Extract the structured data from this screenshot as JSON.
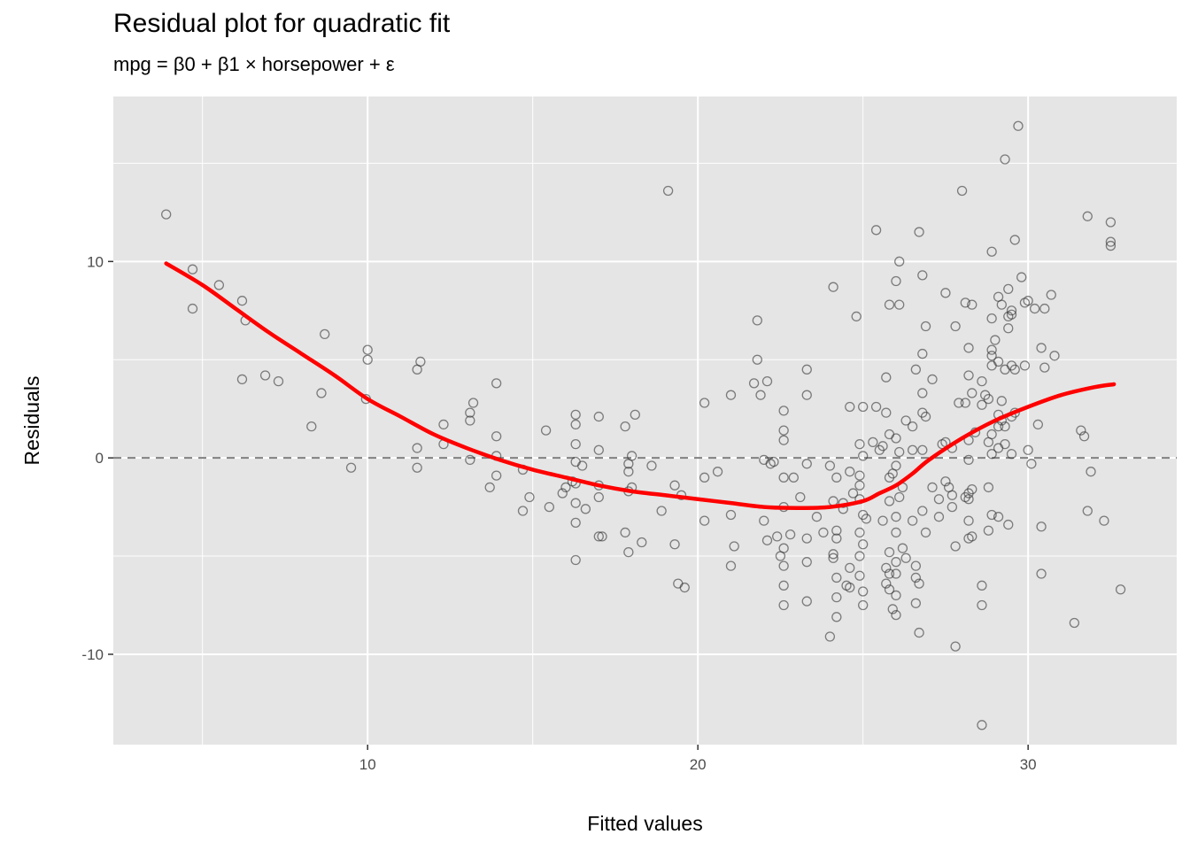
{
  "chart_data": {
    "type": "scatter",
    "title": "Residual plot for quadratic fit",
    "subtitle": "mpg = β0 + β1 × horsepower + ε",
    "xlabel": "Fitted values",
    "ylabel": "Residuals",
    "xlim": [
      2.3,
      34.5
    ],
    "ylim": [
      -14.6,
      18.4
    ],
    "x_ticks": [
      10,
      20,
      30
    ],
    "x_tick_labels": [
      "10",
      "20",
      "30"
    ],
    "y_ticks": [
      -10,
      0,
      10
    ],
    "y_tick_labels": [
      "-10",
      "0",
      "10"
    ],
    "reference_line": {
      "y": 0,
      "style": "dashed",
      "color": "#7f7f7f"
    },
    "grid": true,
    "colors": {
      "panel": "#e5e5e5",
      "grid": "#ffffff",
      "points": "#333333",
      "smooth": "#ff0000"
    },
    "points": [
      [
        3.9,
        12.4
      ],
      [
        4.7,
        9.6
      ],
      [
        4.7,
        7.6
      ],
      [
        5.5,
        8.8
      ],
      [
        6.2,
        8.0
      ],
      [
        6.3,
        7.0
      ],
      [
        6.2,
        4.0
      ],
      [
        6.9,
        4.2
      ],
      [
        7.3,
        3.9
      ],
      [
        8.3,
        1.6
      ],
      [
        8.7,
        6.3
      ],
      [
        8.6,
        3.3
      ],
      [
        9.5,
        -0.5
      ],
      [
        10,
        5.5
      ],
      [
        10,
        5.0
      ],
      [
        9.95,
        3.0
      ],
      [
        11.5,
        4.5
      ],
      [
        11.6,
        4.9
      ],
      [
        11.5,
        0.5
      ],
      [
        11.5,
        -0.5
      ],
      [
        12.3,
        1.7
      ],
      [
        12.3,
        0.7
      ],
      [
        13.1,
        -0.1
      ],
      [
        13.2,
        2.8
      ],
      [
        13.1,
        2.3
      ],
      [
        13.1,
        1.9
      ],
      [
        13.9,
        3.8
      ],
      [
        13.9,
        1.1
      ],
      [
        13.9,
        0.1
      ],
      [
        13.9,
        -0.9
      ],
      [
        13.7,
        -1.5
      ],
      [
        14.7,
        -0.6
      ],
      [
        14.7,
        -2.7
      ],
      [
        14.9,
        -2.0
      ],
      [
        15.4,
        1.4
      ],
      [
        15.5,
        -2.5
      ],
      [
        15.9,
        -1.8
      ],
      [
        16.0,
        -1.5
      ],
      [
        16.2,
        -1.2
      ],
      [
        16.3,
        2.2
      ],
      [
        16.3,
        1.7
      ],
      [
        16.3,
        0.7
      ],
      [
        16.3,
        -0.2
      ],
      [
        16.5,
        -0.4
      ],
      [
        16.3,
        -1.3
      ],
      [
        16.3,
        -2.3
      ],
      [
        16.3,
        -3.3
      ],
      [
        16.3,
        -5.2
      ],
      [
        16.6,
        -2.6
      ],
      [
        17.0,
        2.1
      ],
      [
        17.0,
        0.4
      ],
      [
        17.0,
        -1.4
      ],
      [
        17.0,
        -2.0
      ],
      [
        17.1,
        -4.0
      ],
      [
        17.0,
        -4.0
      ],
      [
        17.8,
        1.6
      ],
      [
        17.9,
        -0.3
      ],
      [
        17.9,
        -0.7
      ],
      [
        18.0,
        0.1
      ],
      [
        18.1,
        2.2
      ],
      [
        17.9,
        -1.7
      ],
      [
        18.0,
        -1.5
      ],
      [
        17.8,
        -3.8
      ],
      [
        17.9,
        -4.8
      ],
      [
        18.3,
        -4.3
      ],
      [
        18.6,
        -0.4
      ],
      [
        18.9,
        -2.7
      ],
      [
        19.1,
        13.6
      ],
      [
        19.3,
        -1.4
      ],
      [
        19.5,
        -1.9
      ],
      [
        19.3,
        -4.4
      ],
      [
        19.4,
        -6.4
      ],
      [
        19.6,
        -6.6
      ],
      [
        20.2,
        -1.0
      ],
      [
        20.2,
        2.8
      ],
      [
        20.2,
        -3.2
      ],
      [
        20.6,
        -0.7
      ],
      [
        21.0,
        3.2
      ],
      [
        21.0,
        -2.9
      ],
      [
        21.1,
        -4.5
      ],
      [
        21.0,
        -5.5
      ],
      [
        21.7,
        3.8
      ],
      [
        21.8,
        7.0
      ],
      [
        21.8,
        5.0
      ],
      [
        21.9,
        3.2
      ],
      [
        22.1,
        3.9
      ],
      [
        22.3,
        -0.2
      ],
      [
        22.0,
        -0.1
      ],
      [
        22.2,
        -0.3
      ],
      [
        22.0,
        -3.2
      ],
      [
        22.1,
        -4.2
      ],
      [
        22.4,
        -4.0
      ],
      [
        22.6,
        2.4
      ],
      [
        22.6,
        1.4
      ],
      [
        22.6,
        0.9
      ],
      [
        22.6,
        -1.0
      ],
      [
        22.6,
        -2.5
      ],
      [
        22.6,
        -4.6
      ],
      [
        22.5,
        -5.0
      ],
      [
        22.6,
        -5.5
      ],
      [
        22.6,
        -6.5
      ],
      [
        22.6,
        -7.5
      ],
      [
        22.8,
        -3.9
      ],
      [
        22.9,
        -1.0
      ],
      [
        23.1,
        -2.0
      ],
      [
        23.3,
        4.5
      ],
      [
        23.3,
        3.2
      ],
      [
        23.3,
        -0.3
      ],
      [
        23.3,
        -4.1
      ],
      [
        23.3,
        -5.3
      ],
      [
        23.3,
        -7.3
      ],
      [
        23.6,
        -3.0
      ],
      [
        23.8,
        -3.8
      ],
      [
        24.1,
        8.7
      ],
      [
        24.0,
        -0.4
      ],
      [
        24.2,
        -1.0
      ],
      [
        24.1,
        -2.2
      ],
      [
        24.2,
        -3.7
      ],
      [
        24.2,
        -4.1
      ],
      [
        24.1,
        -4.9
      ],
      [
        24.1,
        -5.1
      ],
      [
        24.2,
        -6.1
      ],
      [
        24.2,
        -7.1
      ],
      [
        24.2,
        -8.1
      ],
      [
        24.0,
        -9.1
      ],
      [
        24.4,
        -2.3
      ],
      [
        24.4,
        -2.6
      ],
      [
        24.6,
        -5.6
      ],
      [
        24.5,
        -6.5
      ],
      [
        24.6,
        -6.6
      ],
      [
        24.6,
        2.6
      ],
      [
        24.6,
        -0.7
      ],
      [
        24.7,
        -1.8
      ],
      [
        24.8,
        7.2
      ],
      [
        24.9,
        0.7
      ],
      [
        24.9,
        -0.9
      ],
      [
        24.9,
        -1.4
      ],
      [
        24.9,
        -2.1
      ],
      [
        24.9,
        -3.8
      ],
      [
        25.0,
        -4.4
      ],
      [
        24.9,
        -5.0
      ],
      [
        24.9,
        -6.0
      ],
      [
        25.0,
        -6.8
      ],
      [
        25.0,
        -7.5
      ],
      [
        25.0,
        2.6
      ],
      [
        25.0,
        0.1
      ],
      [
        25.0,
        -2.9
      ],
      [
        25.1,
        -3.1
      ],
      [
        25.4,
        11.6
      ],
      [
        25.3,
        0.8
      ],
      [
        25.4,
        2.6
      ],
      [
        25.5,
        0.4
      ],
      [
        25.6,
        0.6
      ],
      [
        25.6,
        -3.2
      ],
      [
        25.7,
        2.3
      ],
      [
        25.8,
        1.2
      ],
      [
        25.7,
        4.1
      ],
      [
        25.8,
        7.8
      ],
      [
        25.9,
        -0.8
      ],
      [
        25.8,
        -1.0
      ],
      [
        25.8,
        -2.2
      ],
      [
        25.8,
        -4.8
      ],
      [
        25.7,
        -5.6
      ],
      [
        25.8,
        -5.9
      ],
      [
        25.7,
        -6.4
      ],
      [
        25.8,
        -6.7
      ],
      [
        25.9,
        -7.7
      ],
      [
        26.0,
        -3.0
      ],
      [
        26.0,
        -3.8
      ],
      [
        26.0,
        -5.3
      ],
      [
        26.0,
        -5.9
      ],
      [
        26.0,
        -7.0
      ],
      [
        26.0,
        -8.0
      ],
      [
        26.1,
        10.0
      ],
      [
        26.0,
        9.0
      ],
      [
        26.1,
        7.8
      ],
      [
        26.0,
        1.0
      ],
      [
        26.1,
        0.3
      ],
      [
        26.0,
        -0.4
      ],
      [
        26.2,
        -1.5
      ],
      [
        26.1,
        -2.0
      ],
      [
        26.2,
        -4.6
      ],
      [
        26.3,
        1.9
      ],
      [
        26.3,
        -5.1
      ],
      [
        26.5,
        1.6
      ],
      [
        26.5,
        0.4
      ],
      [
        26.6,
        4.5
      ],
      [
        26.7,
        11.5
      ],
      [
        26.5,
        -3.2
      ],
      [
        26.6,
        -5.5
      ],
      [
        26.6,
        -6.1
      ],
      [
        26.7,
        -6.4
      ],
      [
        26.6,
        -7.4
      ],
      [
        26.7,
        -8.9
      ],
      [
        26.8,
        9.3
      ],
      [
        26.8,
        5.3
      ],
      [
        26.8,
        3.3
      ],
      [
        26.8,
        2.3
      ],
      [
        26.9,
        2.1
      ],
      [
        26.9,
        6.7
      ],
      [
        26.8,
        0.4
      ],
      [
        26.8,
        -2.7
      ],
      [
        26.9,
        -3.8
      ],
      [
        27.1,
        4.0
      ],
      [
        27.1,
        -1.5
      ],
      [
        27.3,
        -2.1
      ],
      [
        27.3,
        -3.0
      ],
      [
        27.4,
        0.7
      ],
      [
        27.5,
        0.8
      ],
      [
        27.5,
        8.4
      ],
      [
        27.5,
        -1.2
      ],
      [
        27.6,
        -1.5
      ],
      [
        27.7,
        0.5
      ],
      [
        27.7,
        -1.9
      ],
      [
        27.7,
        -2.5
      ],
      [
        27.8,
        6.7
      ],
      [
        27.9,
        2.8
      ],
      [
        27.8,
        -4.5
      ],
      [
        27.8,
        -9.6
      ],
      [
        28.0,
        13.6
      ],
      [
        28.1,
        2.8
      ],
      [
        28.2,
        5.6
      ],
      [
        28.1,
        7.9
      ],
      [
        28.3,
        7.8
      ],
      [
        28.2,
        4.2
      ],
      [
        28.3,
        3.3
      ],
      [
        28.1,
        -2.0
      ],
      [
        28.2,
        -2.1
      ],
      [
        28.2,
        -4.1
      ],
      [
        28.2,
        -3.2
      ],
      [
        28.3,
        -4.0
      ],
      [
        28.2,
        -0.1
      ],
      [
        28.2,
        0.9
      ],
      [
        28.4,
        1.3
      ],
      [
        28.3,
        -1.6
      ],
      [
        28.2,
        -1.8
      ],
      [
        28.6,
        3.9
      ],
      [
        28.6,
        2.7
      ],
      [
        28.7,
        3.2
      ],
      [
        28.8,
        3.0
      ],
      [
        28.8,
        0.8
      ],
      [
        28.8,
        -1.5
      ],
      [
        28.6,
        -6.5
      ],
      [
        28.6,
        -7.5
      ],
      [
        28.9,
        10.5
      ],
      [
        28.9,
        7.1
      ],
      [
        28.9,
        5.5
      ],
      [
        28.9,
        5.2
      ],
      [
        28.9,
        4.7
      ],
      [
        28.9,
        1.2
      ],
      [
        28.9,
        0.2
      ],
      [
        28.9,
        -2.9
      ],
      [
        28.8,
        -3.7
      ],
      [
        28.6,
        -13.6
      ],
      [
        29.0,
        6.0
      ],
      [
        29.1,
        8.2
      ],
      [
        29.1,
        4.9
      ],
      [
        29.1,
        2.2
      ],
      [
        29.1,
        1.6
      ],
      [
        29.1,
        0.5
      ],
      [
        29.1,
        -3.0
      ],
      [
        29.2,
        7.8
      ],
      [
        29.2,
        2.9
      ],
      [
        29.3,
        15.2
      ],
      [
        29.2,
        1.9
      ],
      [
        29.3,
        4.5
      ],
      [
        29.3,
        0.7
      ],
      [
        29.3,
        1.6
      ],
      [
        29.4,
        7.2
      ],
      [
        29.4,
        6.6
      ],
      [
        29.4,
        8.6
      ],
      [
        29.5,
        7.5
      ],
      [
        29.5,
        7.3
      ],
      [
        29.6,
        11.1
      ],
      [
        29.5,
        4.7
      ],
      [
        29.5,
        2.1
      ],
      [
        29.6,
        2.3
      ],
      [
        29.5,
        0.2
      ],
      [
        29.4,
        -3.4
      ],
      [
        29.6,
        4.5
      ],
      [
        29.7,
        16.9
      ],
      [
        29.8,
        9.2
      ],
      [
        29.9,
        7.9
      ],
      [
        29.9,
        4.7
      ],
      [
        30.0,
        8.0
      ],
      [
        30.0,
        0.4
      ],
      [
        30.1,
        -0.3
      ],
      [
        30.2,
        7.6
      ],
      [
        30.3,
        1.7
      ],
      [
        30.4,
        5.6
      ],
      [
        30.4,
        -3.5
      ],
      [
        30.4,
        -5.9
      ],
      [
        30.5,
        7.6
      ],
      [
        30.5,
        4.6
      ],
      [
        30.7,
        8.3
      ],
      [
        30.8,
        5.2
      ],
      [
        31.4,
        -8.4
      ],
      [
        31.6,
        1.4
      ],
      [
        31.7,
        1.1
      ],
      [
        31.8,
        -2.7
      ],
      [
        31.8,
        12.3
      ],
      [
        31.9,
        -0.7
      ],
      [
        32.3,
        -3.2
      ],
      [
        32.5,
        12.0
      ],
      [
        32.5,
        11.0
      ],
      [
        32.5,
        10.8
      ],
      [
        32.8,
        -6.7
      ]
    ],
    "smooth_curve": [
      [
        3.9,
        9.9
      ],
      [
        5,
        8.8
      ],
      [
        6,
        7.6
      ],
      [
        7,
        6.4
      ],
      [
        8,
        5.3
      ],
      [
        9,
        4.2
      ],
      [
        10,
        3.0
      ],
      [
        11,
        2.1
      ],
      [
        12,
        1.2
      ],
      [
        13,
        0.5
      ],
      [
        14,
        -0.1
      ],
      [
        15,
        -0.6
      ],
      [
        16,
        -1.0
      ],
      [
        17,
        -1.4
      ],
      [
        18,
        -1.7
      ],
      [
        19,
        -1.9
      ],
      [
        20,
        -2.1
      ],
      [
        21,
        -2.3
      ],
      [
        22,
        -2.5
      ],
      [
        23,
        -2.55
      ],
      [
        24,
        -2.5
      ],
      [
        25,
        -2.2
      ],
      [
        25.5,
        -1.8
      ],
      [
        26,
        -1.4
      ],
      [
        26.5,
        -0.8
      ],
      [
        27,
        -0.1
      ],
      [
        28,
        1.0
      ],
      [
        29,
        1.9
      ],
      [
        30,
        2.6
      ],
      [
        31,
        3.2
      ],
      [
        32,
        3.6
      ],
      [
        32.6,
        3.75
      ]
    ]
  }
}
